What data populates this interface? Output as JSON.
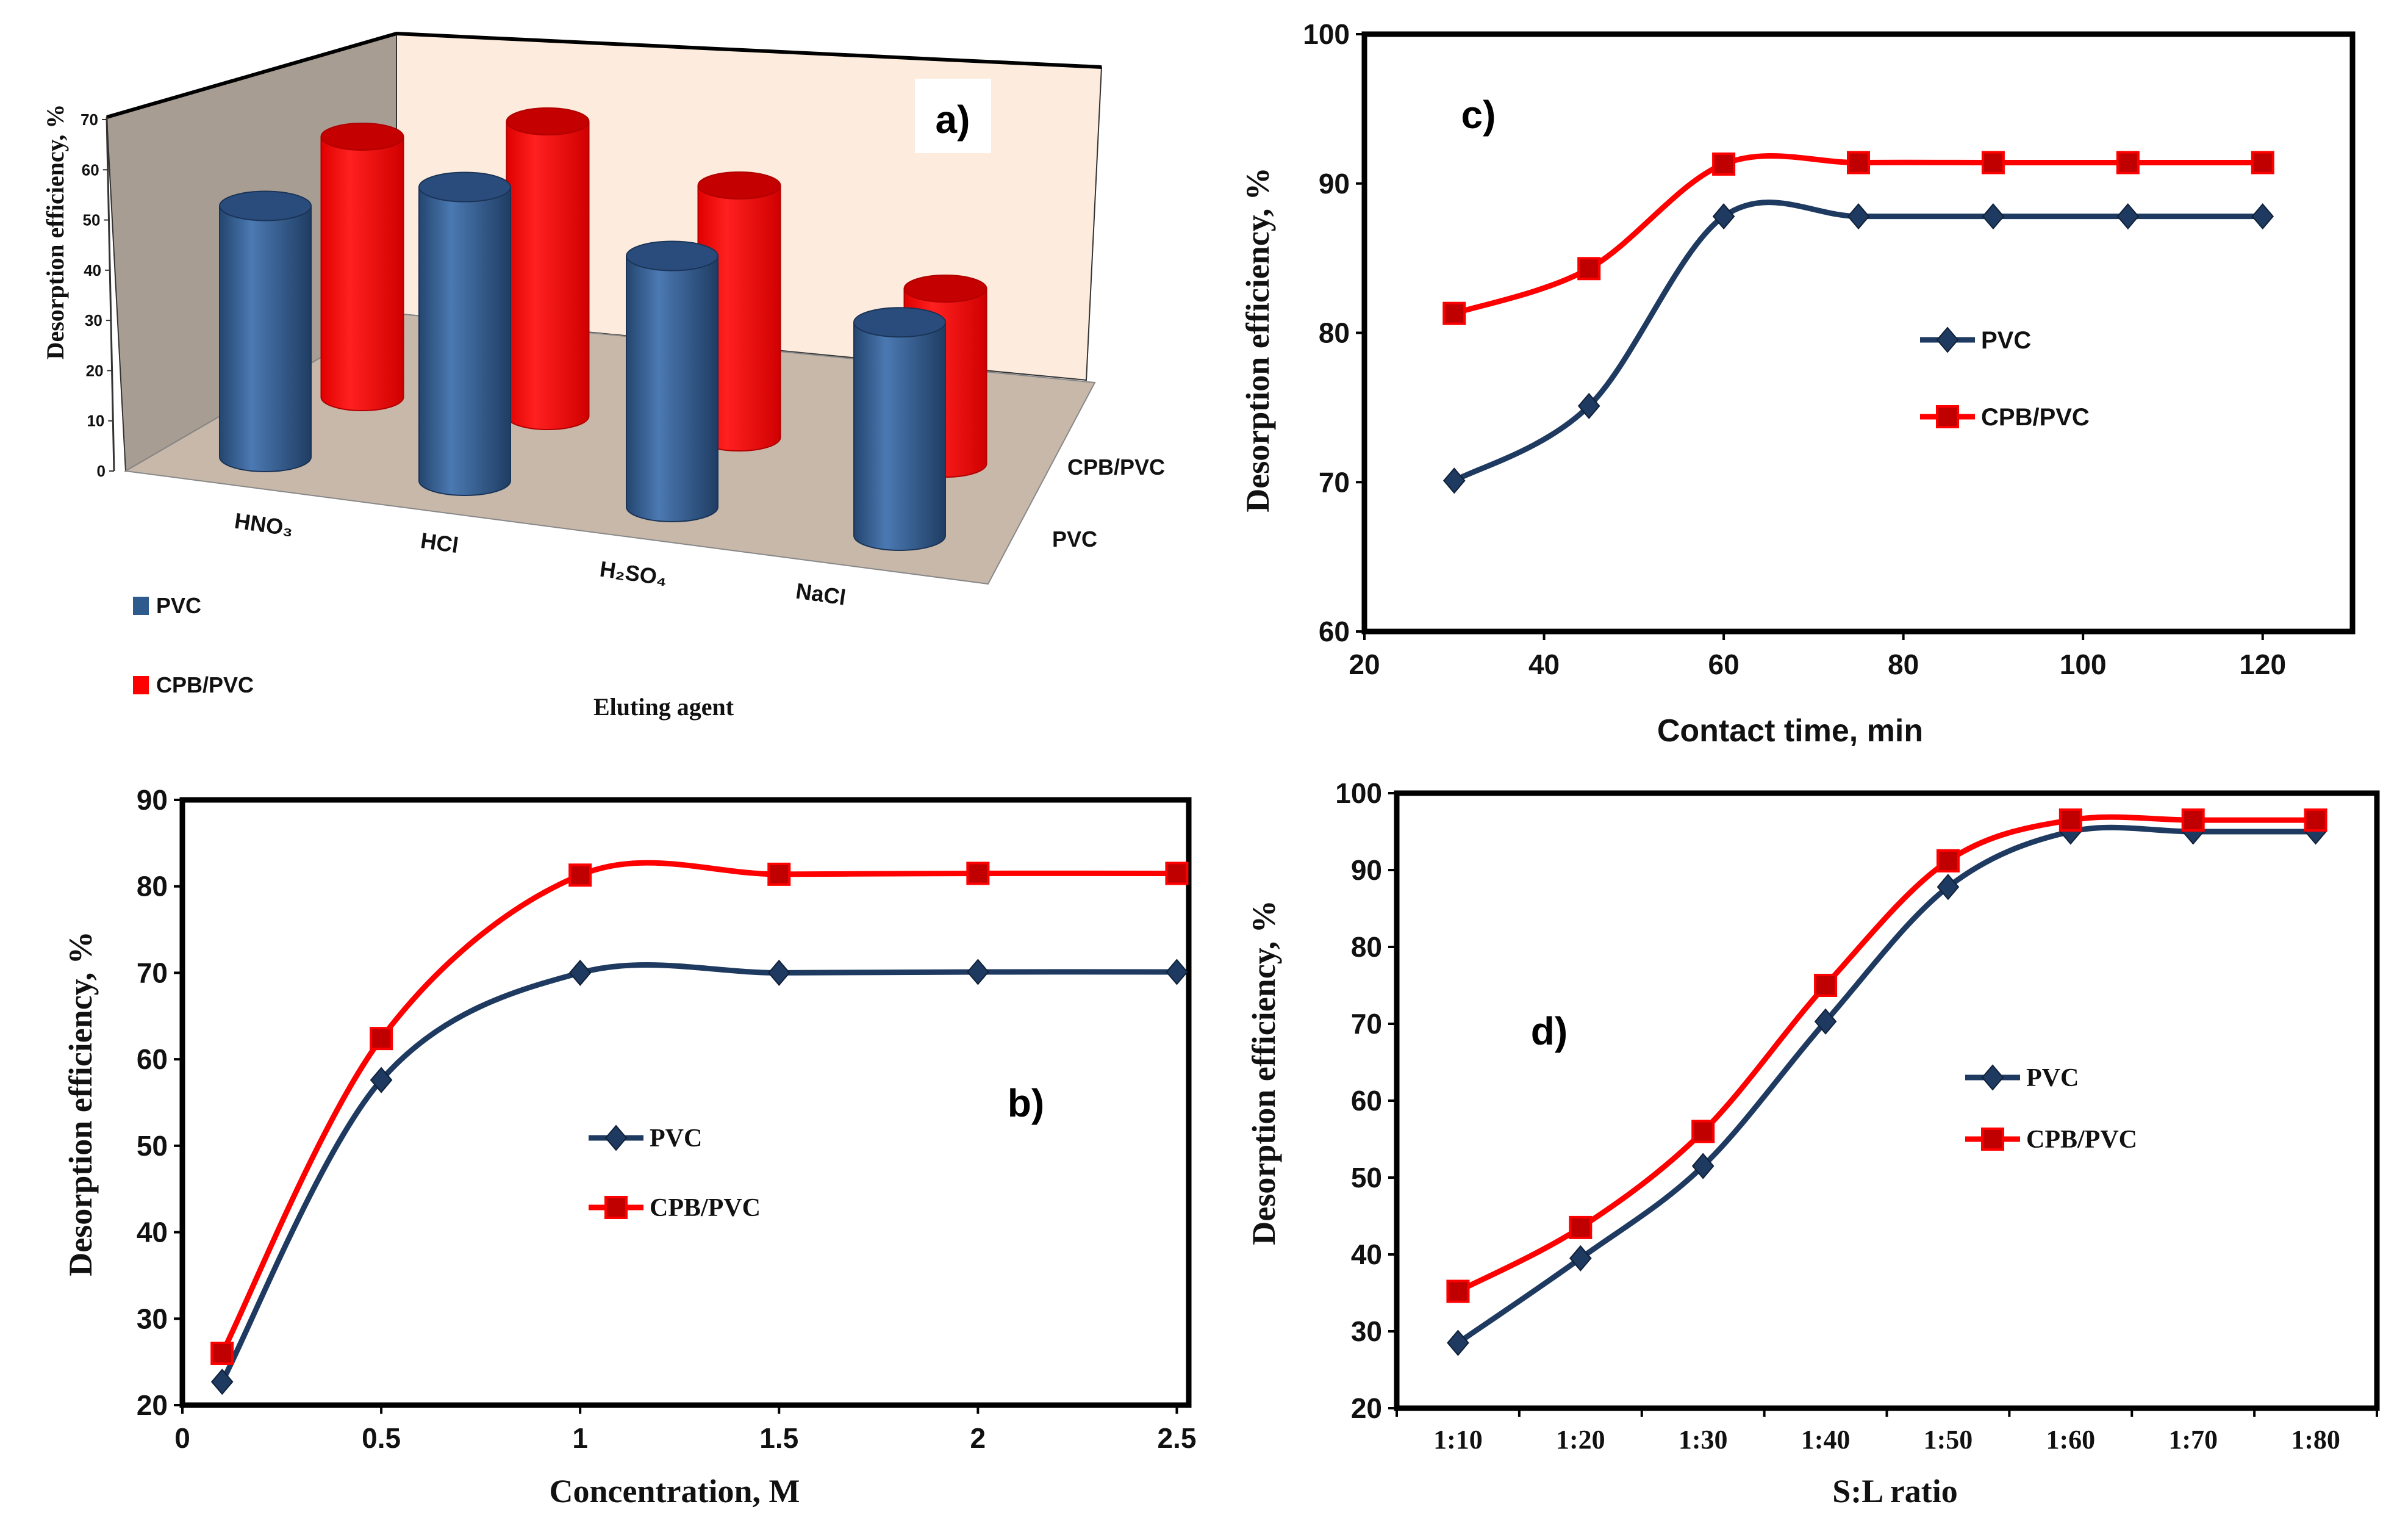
{
  "chart_data": [
    {
      "type": "bar",
      "style": "3d-cylinder",
      "panel_label": "a)",
      "categories": [
        "HNO₃",
        "HCl",
        "H₂SO₄",
        "NaCl"
      ],
      "series": [
        {
          "name": "PVC",
          "color": "#2F5A8E",
          "values": [
            50,
            58.5,
            50,
            42.5
          ]
        },
        {
          "name": "CPB/PVC",
          "color": "#FF0000",
          "values": [
            61,
            69,
            59,
            41
          ]
        }
      ],
      "depth_labels": [
        "PVC",
        "CPB/PVC"
      ],
      "xlabel": "Eluting agent",
      "ylabel": "Desorption efficiency, %",
      "ylim": [
        0,
        70
      ],
      "yticks": [
        0,
        10,
        20,
        30,
        40,
        50,
        60,
        70
      ],
      "legend": "bottom-left"
    },
    {
      "type": "line",
      "panel_label": "b)",
      "x": [
        0.1,
        0.5,
        1,
        1.5,
        2,
        2.5
      ],
      "series": [
        {
          "name": "PVC",
          "color": "#1F3A60",
          "marker": "diamond",
          "values": [
            22.7,
            57.6,
            70.0,
            70.0,
            70.1,
            70.1
          ]
        },
        {
          "name": "CPB/PVC",
          "color": "#FF0000",
          "marker": "square",
          "values": [
            26.0,
            62.4,
            81.3,
            81.4,
            81.5,
            81.5
          ]
        }
      ],
      "xlabel": "Concentration, M",
      "ylabel": "Desorption efficiency, %",
      "xlim": [
        0,
        2.53
      ],
      "ylim": [
        20,
        90
      ],
      "xticks": [
        0,
        0.5,
        1,
        1.5,
        2,
        2.5
      ],
      "yticks": [
        20,
        30,
        40,
        50,
        60,
        70,
        80,
        90
      ],
      "grid": false,
      "legend": "center"
    },
    {
      "type": "line",
      "panel_label": "c)",
      "x": [
        30,
        45,
        60,
        75,
        90,
        105,
        120
      ],
      "series": [
        {
          "name": "PVC",
          "color": "#1F3A60",
          "marker": "diamond",
          "values": [
            70.1,
            75.1,
            87.8,
            87.8,
            87.8,
            87.8,
            87.8
          ]
        },
        {
          "name": "CPB/PVC",
          "color": "#FF0000",
          "marker": "square",
          "values": [
            81.3,
            84.3,
            91.3,
            91.4,
            91.4,
            91.4,
            91.4
          ]
        }
      ],
      "xlabel": "Contact time, min",
      "ylabel": "Desorption efficiency, %",
      "xlim": [
        20,
        130
      ],
      "ylim": [
        60,
        100
      ],
      "xticks": [
        20,
        40,
        60,
        80,
        100,
        120
      ],
      "yticks": [
        60,
        70,
        80,
        90,
        100
      ],
      "grid": false,
      "legend": "center-right"
    },
    {
      "type": "line",
      "panel_label": "d)",
      "categories": [
        "1:10",
        "1:20",
        "1:30",
        "1:40",
        "1:50",
        "1:60",
        "1:70",
        "1:80"
      ],
      "series": [
        {
          "name": "PVC",
          "color": "#1F3A60",
          "marker": "diamond",
          "values": [
            28.5,
            39.5,
            51.5,
            70.3,
            87.8,
            95.0,
            95.0,
            95.0
          ]
        },
        {
          "name": "CPB/PVC",
          "color": "#FF0000",
          "marker": "square",
          "values": [
            35.2,
            43.5,
            56.0,
            75.0,
            91.2,
            96.5,
            96.5,
            96.5
          ]
        }
      ],
      "xlabel": "S:L ratio",
      "ylabel": "Desorption efficiency, %",
      "ylim": [
        20,
        100
      ],
      "yticks": [
        20,
        30,
        40,
        50,
        60,
        70,
        80,
        90,
        100
      ],
      "grid": false,
      "legend": "center"
    }
  ]
}
